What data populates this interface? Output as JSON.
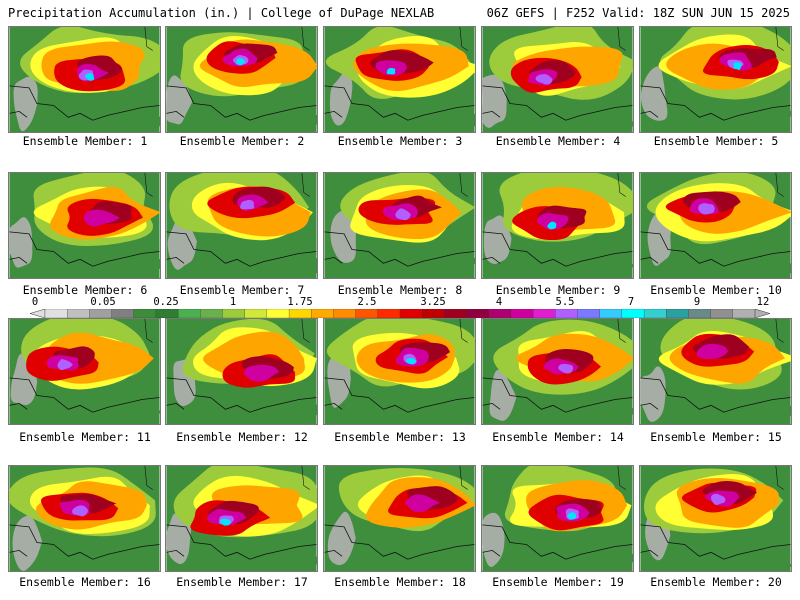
{
  "header": {
    "left": "Precipitation Accumulation (in.) | College of DuPage NEXLAB",
    "right": "06Z GEFS | F252 Valid: 18Z SUN JUN 15 2025"
  },
  "members": [
    {
      "label": "Ensemble Member: 1"
    },
    {
      "label": "Ensemble Member: 2"
    },
    {
      "label": "Ensemble Member: 3"
    },
    {
      "label": "Ensemble Member: 4"
    },
    {
      "label": "Ensemble Member: 5"
    },
    {
      "label": "Ensemble Member: 6"
    },
    {
      "label": "Ensemble Member: 7"
    },
    {
      "label": "Ensemble Member: 8"
    },
    {
      "label": "Ensemble Member: 9"
    },
    {
      "label": "Ensemble Member: 10"
    },
    {
      "label": "Ensemble Member: 11"
    },
    {
      "label": "Ensemble Member: 12"
    },
    {
      "label": "Ensemble Member: 13"
    },
    {
      "label": "Ensemble Member: 14"
    },
    {
      "label": "Ensemble Member: 15"
    },
    {
      "label": "Ensemble Member: 16"
    },
    {
      "label": "Ensemble Member: 17"
    },
    {
      "label": "Ensemble Member: 18"
    },
    {
      "label": "Ensemble Member: 19"
    },
    {
      "label": "Ensemble Member: 20"
    }
  ],
  "colorbar": {
    "labels": [
      "0",
      "0.05",
      "0.25",
      "1",
      "1.75",
      "2.5",
      "3.25",
      "4",
      "5.5",
      "7",
      "9",
      "12"
    ],
    "colors": [
      "#e0e0e0",
      "#c0c0c0",
      "#a0a0a0",
      "#808080",
      "#3c8c3c",
      "#2e7d32",
      "#4caf50",
      "#6ab04c",
      "#9ccc3c",
      "#cfe83a",
      "#ffff33",
      "#ffd700",
      "#ffaa00",
      "#ff8c00",
      "#ff5500",
      "#ff2a00",
      "#e00000",
      "#c00000",
      "#a00020",
      "#900040",
      "#b0006f",
      "#d000a0",
      "#e020d0",
      "#b060ff",
      "#7a7aff",
      "#33ccff",
      "#00ffff",
      "#33d0d0",
      "#2aa0a0",
      "#6a8a8a",
      "#909090",
      "#b0b0b0"
    ]
  },
  "map_colors": {
    "dry": "#3e8e3e",
    "light": "#9ccc3c",
    "yellow": "#ffff33",
    "orange": "#ffa500",
    "red": "#e00000",
    "darkred": "#a00020",
    "magenta": "#d000a0",
    "violet": "#b060ff",
    "cyan": "#00e5ff",
    "gray": "#b0b0b0"
  }
}
